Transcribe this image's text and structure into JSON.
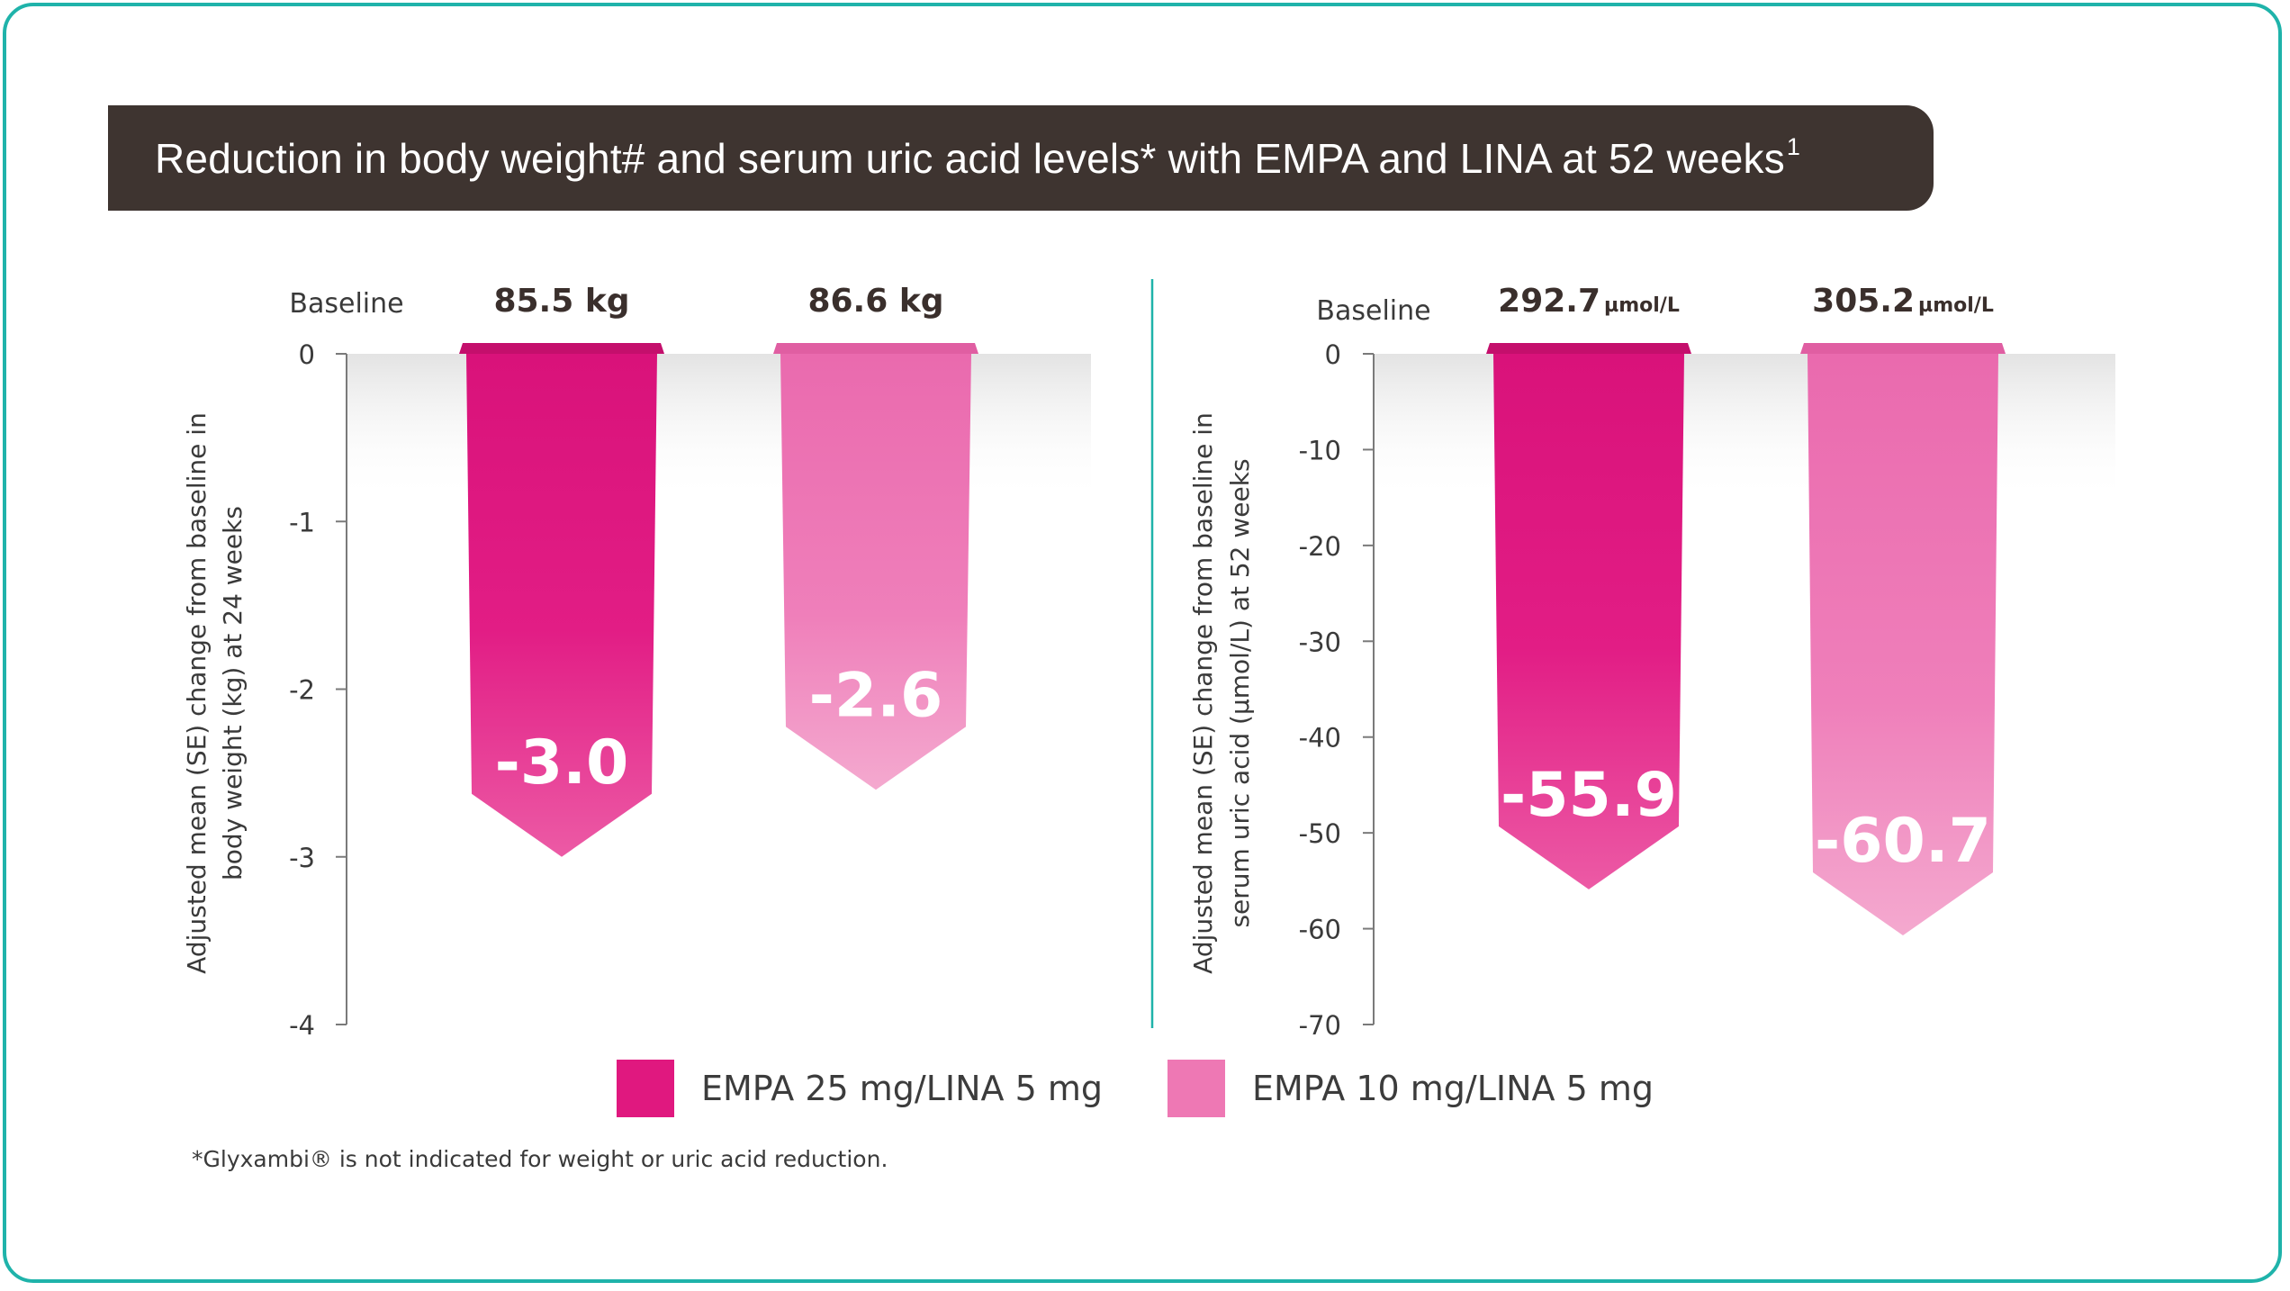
{
  "title": {
    "text": "Reduction in body weight# and serum uric acid levels* with EMPA and LINA at 52 weeks",
    "superscript": "1"
  },
  "colors": {
    "frame": "#1fb3aa",
    "title_bg": "#3e3430",
    "series_dark": "#e0187f",
    "series_light": "#ee78b4",
    "divider": "#1fb3aa"
  },
  "chart_data": [
    {
      "type": "bar",
      "title": "Body weight",
      "ylabel_lines": [
        "Adjusted mean (SE) change from baseline in",
        "body weight (kg) at 24 weeks"
      ],
      "baseline_label": "Baseline",
      "ylim": [
        -4,
        0
      ],
      "yticks": [
        0,
        -1,
        -2,
        -3,
        -4
      ],
      "ytick_labels": [
        "0",
        "-1",
        "-2",
        "-3",
        "-4"
      ],
      "categories": [
        "EMPA 25 mg/LINA 5 mg",
        "EMPA 10 mg/LINA 5 mg"
      ],
      "baseline_values": [
        {
          "value": "85.5",
          "unit": " kg"
        },
        {
          "value": "86.6",
          "unit": " kg"
        }
      ],
      "values": [
        -3.0,
        -2.6
      ],
      "value_labels": [
        "-3.0",
        "-2.6"
      ]
    },
    {
      "type": "bar",
      "title": "Serum uric acid",
      "ylabel_lines": [
        "Adjusted mean (SE) change from baseline in",
        "serum uric acid (µmol/L) at 52 weeks"
      ],
      "baseline_label": "Baseline",
      "ylim": [
        -70,
        0
      ],
      "yticks": [
        0,
        -10,
        -20,
        -30,
        -40,
        -50,
        -60,
        -70
      ],
      "ytick_labels": [
        "0",
        "-10",
        "-20",
        "-30",
        "-40",
        "-50",
        "-60",
        "-70"
      ],
      "categories": [
        "EMPA 25 mg/LINA 5 mg",
        "EMPA 10 mg/LINA 5 mg"
      ],
      "baseline_values": [
        {
          "value": "292.7",
          "unit": "µmol/L"
        },
        {
          "value": "305.2",
          "unit": "µmol/L"
        }
      ],
      "values": [
        -55.9,
        -60.7
      ],
      "value_labels": [
        "-55.9",
        "-60.7"
      ]
    }
  ],
  "legend": [
    {
      "label": "EMPA 25 mg/LINA 5 mg"
    },
    {
      "label": "EMPA 10 mg/LINA 5 mg"
    }
  ],
  "footnote": "*Glyxambi® is not indicated for weight or uric acid reduction."
}
